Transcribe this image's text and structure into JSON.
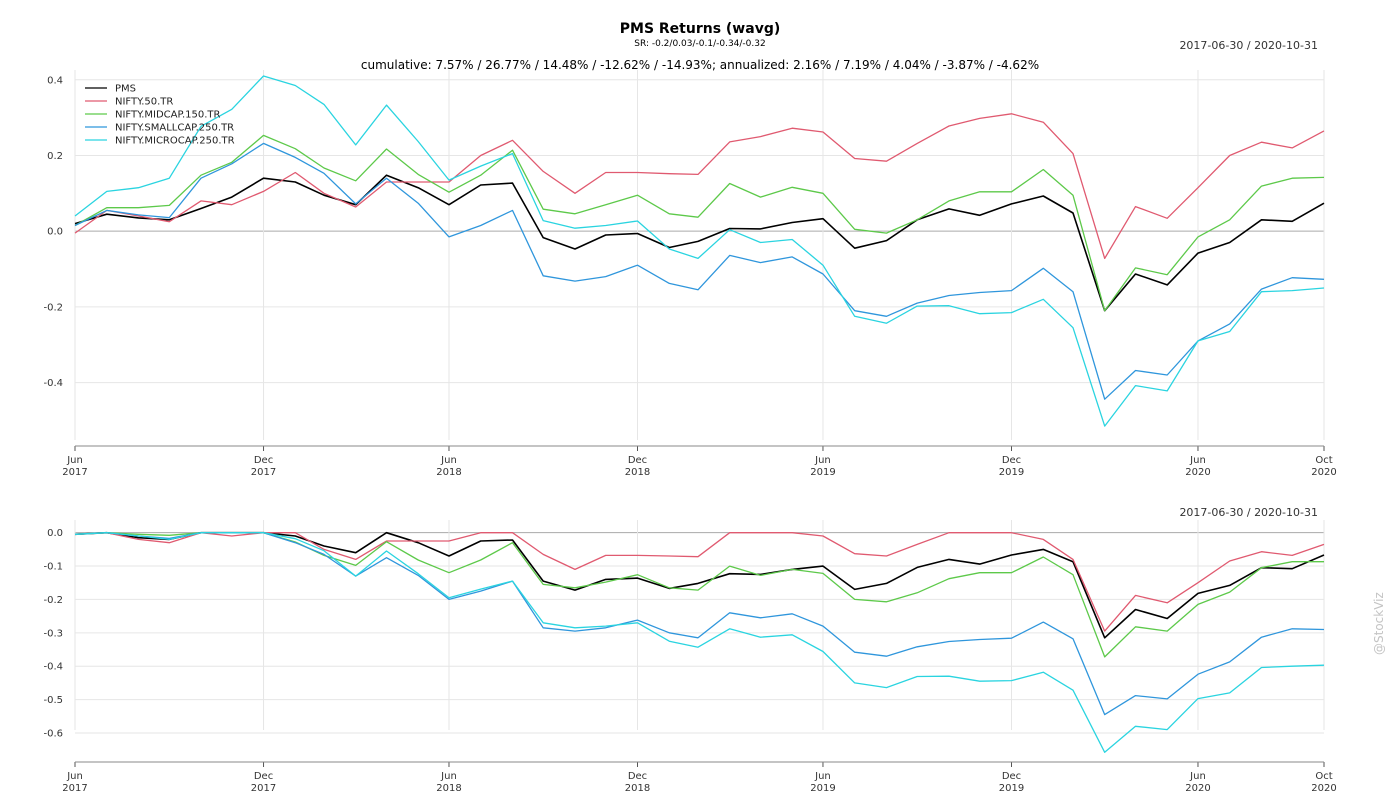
{
  "header": {
    "title": "PMS Returns (wavg)",
    "sr": "SR: -0.2/0.03/-0.1/-0.34/-0.32",
    "date_range": "2017-06-30 / 2020-10-31",
    "stats": "cumulative: 7.57% / 26.77% / 14.48% / -12.62% / -14.93%; annualized: 2.16% / 7.19% / 4.04% / -3.87% / -4.62%"
  },
  "watermark": "@StockViz",
  "chart_data": [
    {
      "type": "line",
      "title": "PMS Returns (wavg)",
      "subtitle": "cumulative: 7.57% / 26.77% / 14.48% / -12.62% / -14.93%; annualized: 2.16% / 7.19% / 4.04% / -3.87% / -4.62%",
      "date_range": "2017-06-30 / 2020-10-31",
      "x": [
        "2017-06-30",
        "2017-07-31",
        "2017-08-31",
        "2017-09-30",
        "2017-10-31",
        "2017-11-30",
        "2017-12-31",
        "2018-01-31",
        "2018-02-28",
        "2018-03-31",
        "2018-04-30",
        "2018-05-31",
        "2018-06-30",
        "2018-07-31",
        "2018-08-31",
        "2018-09-30",
        "2018-10-31",
        "2018-11-30",
        "2018-12-31",
        "2019-01-31",
        "2019-02-28",
        "2019-03-31",
        "2019-04-30",
        "2019-05-31",
        "2019-06-30",
        "2019-07-31",
        "2019-08-31",
        "2019-09-30",
        "2019-10-31",
        "2019-11-30",
        "2019-12-31",
        "2020-01-31",
        "2020-02-29",
        "2020-03-31",
        "2020-04-30",
        "2020-05-31",
        "2020-06-30",
        "2020-07-31",
        "2020-08-31",
        "2020-09-30",
        "2020-10-31"
      ],
      "x_tick_labels": [
        [
          "Jun",
          "2017"
        ],
        [
          "Dec",
          "2017"
        ],
        [
          "Jun",
          "2018"
        ],
        [
          "Dec",
          "2018"
        ],
        [
          "Jun",
          "2019"
        ],
        [
          "Dec",
          "2019"
        ],
        [
          "Jun",
          "2020"
        ],
        [
          "Oct",
          "2020"
        ]
      ],
      "ylim": [
        -0.52,
        0.41
      ],
      "y_ticks": [
        "0.4",
        "0.2",
        "0.0",
        "-0.2",
        "-0.4"
      ],
      "grid": true,
      "legend": "top-left",
      "series": [
        {
          "name": "PMS",
          "color": "#000000",
          "values": [
            0.02,
            0.045,
            0.035,
            0.03,
            0.06,
            0.09,
            0.14,
            0.13,
            0.095,
            0.07,
            0.148,
            0.115,
            0.07,
            0.122,
            0.127,
            -0.017,
            -0.047,
            -0.01,
            -0.006,
            -0.043,
            -0.027,
            0.007,
            0.006,
            0.023,
            0.033,
            -0.045,
            -0.025,
            0.03,
            0.059,
            0.042,
            0.072,
            0.093,
            0.048,
            -0.21,
            -0.113,
            -0.142,
            -0.058,
            -0.03,
            0.03,
            0.026,
            0.074
          ]
        },
        {
          "name": "NIFTY.50.TR",
          "color": "#e05a70",
          "values": [
            -0.005,
            0.055,
            0.04,
            0.025,
            0.08,
            0.07,
            0.105,
            0.155,
            0.1,
            0.064,
            0.13,
            0.13,
            0.13,
            0.2,
            0.24,
            0.158,
            0.1,
            0.155,
            0.155,
            0.152,
            0.15,
            0.236,
            0.25,
            0.272,
            0.262,
            0.192,
            0.185,
            0.232,
            0.278,
            0.298,
            0.31,
            0.288,
            0.205,
            -0.072,
            0.065,
            0.034,
            0.115,
            0.2,
            0.235,
            0.22,
            0.265
          ]
        },
        {
          "name": "NIFTY.MIDCAP.150.TR",
          "color": "#5dc94a",
          "values": [
            0.015,
            0.062,
            0.062,
            0.068,
            0.148,
            0.182,
            0.253,
            0.218,
            0.167,
            0.133,
            0.217,
            0.15,
            0.103,
            0.148,
            0.214,
            0.058,
            0.046,
            0.07,
            0.095,
            0.046,
            0.037,
            0.126,
            0.09,
            0.116,
            0.1,
            0.005,
            -0.005,
            0.03,
            0.08,
            0.104,
            0.104,
            0.163,
            0.095,
            -0.21,
            -0.097,
            -0.115,
            -0.015,
            0.03,
            0.119,
            0.14,
            0.142
          ]
        },
        {
          "name": "NIFTY.SMALLCAP.250.TR",
          "color": "#2f96dc",
          "values": [
            0.015,
            0.055,
            0.043,
            0.036,
            0.14,
            0.178,
            0.232,
            0.195,
            0.153,
            0.072,
            0.14,
            0.074,
            -0.015,
            0.015,
            0.055,
            -0.118,
            -0.132,
            -0.12,
            -0.09,
            -0.138,
            -0.155,
            -0.064,
            -0.083,
            -0.068,
            -0.113,
            -0.21,
            -0.225,
            -0.19,
            -0.17,
            -0.162,
            -0.157,
            -0.098,
            -0.16,
            -0.444,
            -0.368,
            -0.38,
            -0.29,
            -0.245,
            -0.153,
            -0.123,
            -0.127
          ]
        },
        {
          "name": "NIFTY.MICROCAP.250.TR",
          "color": "#2ad4e0",
          "values": [
            0.04,
            0.105,
            0.115,
            0.14,
            0.277,
            0.322,
            0.41,
            0.385,
            0.335,
            0.228,
            0.333,
            0.237,
            0.135,
            0.172,
            0.205,
            0.028,
            0.008,
            0.015,
            0.027,
            -0.047,
            -0.072,
            0.004,
            -0.03,
            -0.022,
            -0.09,
            -0.225,
            -0.243,
            -0.198,
            -0.197,
            -0.218,
            -0.215,
            -0.18,
            -0.255,
            -0.515,
            -0.408,
            -0.422,
            -0.29,
            -0.265,
            -0.16,
            -0.157,
            -0.15
          ]
        }
      ]
    },
    {
      "type": "line",
      "date_range": "2017-06-30 / 2020-10-31",
      "x_tick_labels": [
        [
          "Jun",
          "2017"
        ],
        [
          "Dec",
          "2017"
        ],
        [
          "Jun",
          "2018"
        ],
        [
          "Dec",
          "2018"
        ],
        [
          "Jun",
          "2019"
        ],
        [
          "Dec",
          "2019"
        ],
        [
          "Jun",
          "2020"
        ],
        [
          "Oct",
          "2020"
        ]
      ],
      "ylim": [
        -0.69,
        0.02
      ],
      "y_ticks": [
        "0.0",
        "-0.1",
        "-0.2",
        "-0.3",
        "-0.4",
        "-0.5",
        "-0.6"
      ],
      "grid": true,
      "series": [
        {
          "name": "PMS",
          "color": "#000000",
          "values": [
            -0.005,
            0,
            -0.015,
            -0.02,
            0,
            0,
            0,
            -0.01,
            -0.04,
            -0.06,
            0,
            -0.03,
            -0.07,
            -0.025,
            -0.022,
            -0.145,
            -0.172,
            -0.14,
            -0.136,
            -0.167,
            -0.152,
            -0.123,
            -0.125,
            -0.11,
            -0.1,
            -0.17,
            -0.152,
            -0.104,
            -0.08,
            -0.094,
            -0.067,
            -0.05,
            -0.087,
            -0.315,
            -0.23,
            -0.257,
            -0.182,
            -0.158,
            -0.105,
            -0.108,
            -0.067
          ]
        },
        {
          "name": "NIFTY.50.TR",
          "color": "#e05a70",
          "values": [
            -0.005,
            0,
            -0.02,
            -0.03,
            0,
            -0.01,
            0,
            0,
            -0.05,
            -0.08,
            -0.025,
            -0.025,
            -0.025,
            0,
            0,
            -0.065,
            -0.11,
            -0.068,
            -0.068,
            -0.07,
            -0.072,
            0,
            0,
            0,
            -0.01,
            -0.063,
            -0.07,
            -0.035,
            0,
            0,
            0,
            -0.02,
            -0.08,
            -0.295,
            -0.188,
            -0.21,
            -0.15,
            -0.085,
            -0.057,
            -0.068,
            -0.035
          ]
        },
        {
          "name": "NIFTY.MIDCAP.150.TR",
          "color": "#5dc94a",
          "values": [
            -0.005,
            0,
            -0.005,
            -0.008,
            0,
            0,
            0,
            -0.028,
            -0.068,
            -0.098,
            -0.027,
            -0.082,
            -0.12,
            -0.082,
            -0.03,
            -0.155,
            -0.165,
            -0.148,
            -0.126,
            -0.165,
            -0.172,
            -0.1,
            -0.128,
            -0.11,
            -0.122,
            -0.2,
            -0.207,
            -0.18,
            -0.138,
            -0.12,
            -0.12,
            -0.073,
            -0.126,
            -0.372,
            -0.282,
            -0.295,
            -0.215,
            -0.178,
            -0.105,
            -0.087,
            -0.087
          ]
        },
        {
          "name": "NIFTY.SMALLCAP.250.TR",
          "color": "#2f96dc",
          "values": [
            -0.005,
            0,
            -0.01,
            -0.017,
            0,
            0,
            0,
            -0.03,
            -0.065,
            -0.13,
            -0.075,
            -0.128,
            -0.2,
            -0.175,
            -0.145,
            -0.285,
            -0.295,
            -0.285,
            -0.262,
            -0.3,
            -0.315,
            -0.24,
            -0.255,
            -0.243,
            -0.28,
            -0.358,
            -0.37,
            -0.342,
            -0.326,
            -0.32,
            -0.316,
            -0.268,
            -0.318,
            -0.545,
            -0.488,
            -0.498,
            -0.424,
            -0.387,
            -0.313,
            -0.288,
            -0.29
          ]
        },
        {
          "name": "NIFTY.MICROCAP.250.TR",
          "color": "#2ad4e0",
          "values": [
            -0.005,
            0,
            -0.01,
            -0.02,
            0,
            0,
            0,
            -0.018,
            -0.054,
            -0.13,
            -0.055,
            -0.123,
            -0.195,
            -0.169,
            -0.145,
            -0.27,
            -0.285,
            -0.28,
            -0.27,
            -0.325,
            -0.343,
            -0.288,
            -0.313,
            -0.306,
            -0.356,
            -0.45,
            -0.464,
            -0.431,
            -0.43,
            -0.445,
            -0.443,
            -0.418,
            -0.472,
            -0.658,
            -0.58,
            -0.59,
            -0.497,
            -0.48,
            -0.404,
            -0.4,
            -0.397
          ]
        }
      ]
    }
  ]
}
